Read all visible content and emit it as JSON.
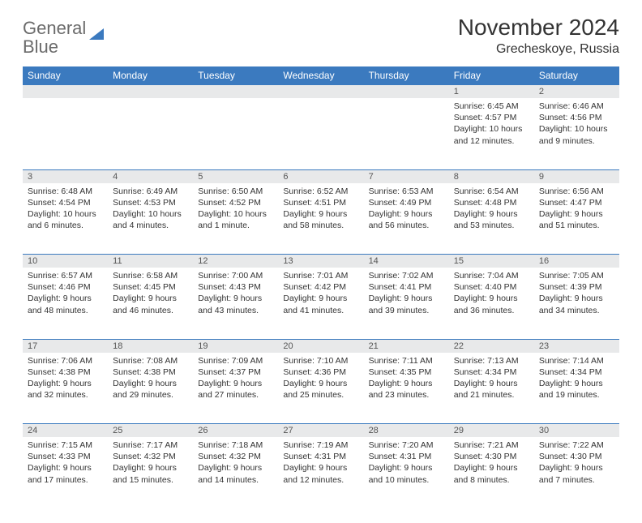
{
  "brand": {
    "part1": "General",
    "part2": "Blue"
  },
  "title": "November 2024",
  "location": "Grecheskoye, Russia",
  "colors": {
    "header_bg": "#3b7abf",
    "header_text": "#ffffff",
    "daynum_bg": "#e8e9ea",
    "text": "#333333",
    "page_bg": "#ffffff"
  },
  "typography": {
    "title_fontsize": 28,
    "location_fontsize": 16,
    "header_fontsize": 12,
    "cell_fontsize": 10.5,
    "daynum_fontsize": 11
  },
  "weekdays": [
    "Sunday",
    "Monday",
    "Tuesday",
    "Wednesday",
    "Thursday",
    "Friday",
    "Saturday"
  ],
  "weeks": [
    [
      null,
      null,
      null,
      null,
      null,
      {
        "d": "1",
        "sr": "Sunrise: 6:45 AM",
        "ss": "Sunset: 4:57 PM",
        "dl": "Daylight: 10 hours and 12 minutes."
      },
      {
        "d": "2",
        "sr": "Sunrise: 6:46 AM",
        "ss": "Sunset: 4:56 PM",
        "dl": "Daylight: 10 hours and 9 minutes."
      }
    ],
    [
      {
        "d": "3",
        "sr": "Sunrise: 6:48 AM",
        "ss": "Sunset: 4:54 PM",
        "dl": "Daylight: 10 hours and 6 minutes."
      },
      {
        "d": "4",
        "sr": "Sunrise: 6:49 AM",
        "ss": "Sunset: 4:53 PM",
        "dl": "Daylight: 10 hours and 4 minutes."
      },
      {
        "d": "5",
        "sr": "Sunrise: 6:50 AM",
        "ss": "Sunset: 4:52 PM",
        "dl": "Daylight: 10 hours and 1 minute."
      },
      {
        "d": "6",
        "sr": "Sunrise: 6:52 AM",
        "ss": "Sunset: 4:51 PM",
        "dl": "Daylight: 9 hours and 58 minutes."
      },
      {
        "d": "7",
        "sr": "Sunrise: 6:53 AM",
        "ss": "Sunset: 4:49 PM",
        "dl": "Daylight: 9 hours and 56 minutes."
      },
      {
        "d": "8",
        "sr": "Sunrise: 6:54 AM",
        "ss": "Sunset: 4:48 PM",
        "dl": "Daylight: 9 hours and 53 minutes."
      },
      {
        "d": "9",
        "sr": "Sunrise: 6:56 AM",
        "ss": "Sunset: 4:47 PM",
        "dl": "Daylight: 9 hours and 51 minutes."
      }
    ],
    [
      {
        "d": "10",
        "sr": "Sunrise: 6:57 AM",
        "ss": "Sunset: 4:46 PM",
        "dl": "Daylight: 9 hours and 48 minutes."
      },
      {
        "d": "11",
        "sr": "Sunrise: 6:58 AM",
        "ss": "Sunset: 4:45 PM",
        "dl": "Daylight: 9 hours and 46 minutes."
      },
      {
        "d": "12",
        "sr": "Sunrise: 7:00 AM",
        "ss": "Sunset: 4:43 PM",
        "dl": "Daylight: 9 hours and 43 minutes."
      },
      {
        "d": "13",
        "sr": "Sunrise: 7:01 AM",
        "ss": "Sunset: 4:42 PM",
        "dl": "Daylight: 9 hours and 41 minutes."
      },
      {
        "d": "14",
        "sr": "Sunrise: 7:02 AM",
        "ss": "Sunset: 4:41 PM",
        "dl": "Daylight: 9 hours and 39 minutes."
      },
      {
        "d": "15",
        "sr": "Sunrise: 7:04 AM",
        "ss": "Sunset: 4:40 PM",
        "dl": "Daylight: 9 hours and 36 minutes."
      },
      {
        "d": "16",
        "sr": "Sunrise: 7:05 AM",
        "ss": "Sunset: 4:39 PM",
        "dl": "Daylight: 9 hours and 34 minutes."
      }
    ],
    [
      {
        "d": "17",
        "sr": "Sunrise: 7:06 AM",
        "ss": "Sunset: 4:38 PM",
        "dl": "Daylight: 9 hours and 32 minutes."
      },
      {
        "d": "18",
        "sr": "Sunrise: 7:08 AM",
        "ss": "Sunset: 4:38 PM",
        "dl": "Daylight: 9 hours and 29 minutes."
      },
      {
        "d": "19",
        "sr": "Sunrise: 7:09 AM",
        "ss": "Sunset: 4:37 PM",
        "dl": "Daylight: 9 hours and 27 minutes."
      },
      {
        "d": "20",
        "sr": "Sunrise: 7:10 AM",
        "ss": "Sunset: 4:36 PM",
        "dl": "Daylight: 9 hours and 25 minutes."
      },
      {
        "d": "21",
        "sr": "Sunrise: 7:11 AM",
        "ss": "Sunset: 4:35 PM",
        "dl": "Daylight: 9 hours and 23 minutes."
      },
      {
        "d": "22",
        "sr": "Sunrise: 7:13 AM",
        "ss": "Sunset: 4:34 PM",
        "dl": "Daylight: 9 hours and 21 minutes."
      },
      {
        "d": "23",
        "sr": "Sunrise: 7:14 AM",
        "ss": "Sunset: 4:34 PM",
        "dl": "Daylight: 9 hours and 19 minutes."
      }
    ],
    [
      {
        "d": "24",
        "sr": "Sunrise: 7:15 AM",
        "ss": "Sunset: 4:33 PM",
        "dl": "Daylight: 9 hours and 17 minutes."
      },
      {
        "d": "25",
        "sr": "Sunrise: 7:17 AM",
        "ss": "Sunset: 4:32 PM",
        "dl": "Daylight: 9 hours and 15 minutes."
      },
      {
        "d": "26",
        "sr": "Sunrise: 7:18 AM",
        "ss": "Sunset: 4:32 PM",
        "dl": "Daylight: 9 hours and 14 minutes."
      },
      {
        "d": "27",
        "sr": "Sunrise: 7:19 AM",
        "ss": "Sunset: 4:31 PM",
        "dl": "Daylight: 9 hours and 12 minutes."
      },
      {
        "d": "28",
        "sr": "Sunrise: 7:20 AM",
        "ss": "Sunset: 4:31 PM",
        "dl": "Daylight: 9 hours and 10 minutes."
      },
      {
        "d": "29",
        "sr": "Sunrise: 7:21 AM",
        "ss": "Sunset: 4:30 PM",
        "dl": "Daylight: 9 hours and 8 minutes."
      },
      {
        "d": "30",
        "sr": "Sunrise: 7:22 AM",
        "ss": "Sunset: 4:30 PM",
        "dl": "Daylight: 9 hours and 7 minutes."
      }
    ]
  ]
}
